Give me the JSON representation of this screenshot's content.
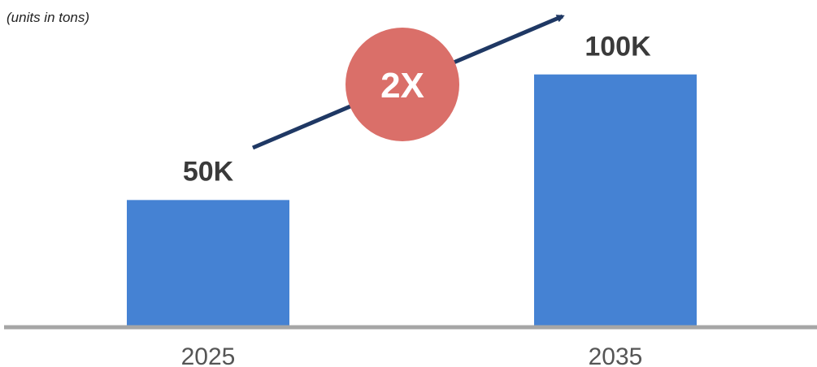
{
  "chart_data": {
    "type": "bar",
    "units_note": "(units in tons)",
    "categories": [
      "2025",
      "2035"
    ],
    "values": [
      50000,
      100000
    ],
    "data_labels": [
      "50K",
      "100K"
    ],
    "growth_label": "2X",
    "ylim": [
      0,
      118000
    ],
    "colors": {
      "bar": "#4582D3",
      "axis": "#A6A6A6",
      "arrow": "#1F3864",
      "badge": "#DA6F69",
      "badge_text": "#FFFFFF",
      "label_text": "#3A3A3A",
      "tick_text": "#555555"
    }
  }
}
